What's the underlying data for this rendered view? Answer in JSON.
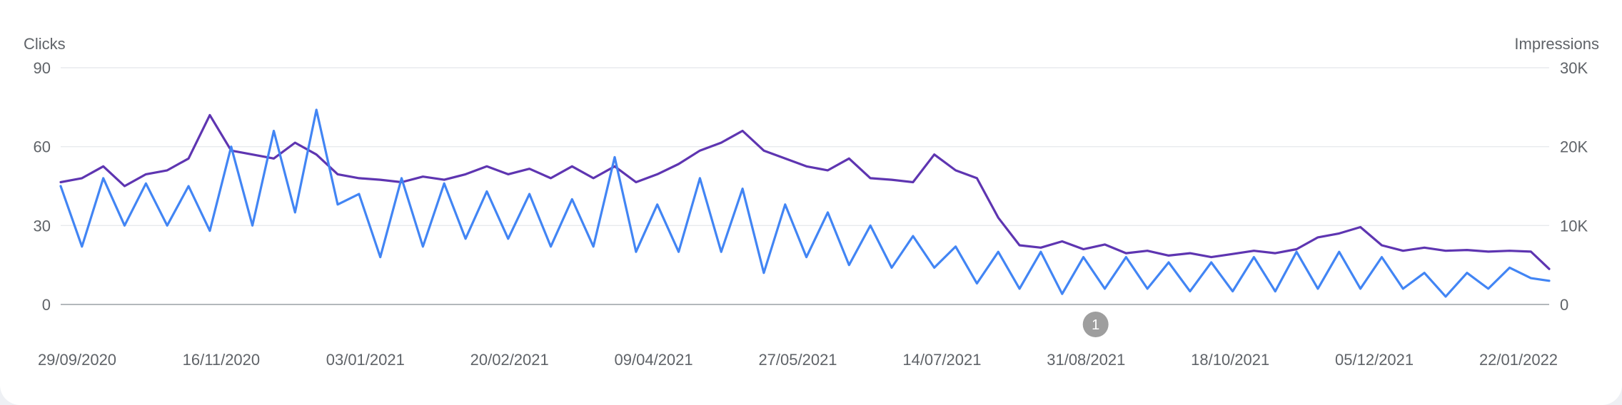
{
  "chart_data": {
    "type": "line",
    "left_axis": {
      "label": "Clicks",
      "ticks": [
        0,
        30,
        60,
        90
      ],
      "range": [
        0,
        90
      ]
    },
    "right_axis": {
      "label": "Impressions",
      "ticks": [
        "0",
        "10K",
        "20K",
        "30K"
      ],
      "range": [
        0,
        30000
      ]
    },
    "x_range": [
      "2020-09-29",
      "2022-01-31"
    ],
    "x_tick_labels": [
      "29/09/2020",
      "16/11/2020",
      "03/01/2021",
      "20/02/2021",
      "09/04/2021",
      "27/05/2021",
      "14/07/2021",
      "31/08/2021",
      "18/10/2021",
      "05/12/2021",
      "22/01/2022"
    ],
    "annotations": [
      {
        "label": "1",
        "date": "2021-09-04"
      }
    ],
    "grid": true,
    "legend": "none",
    "series": [
      {
        "axis": "left",
        "color": "#4285f4",
        "points": [
          [
            "2020-09-29",
            45
          ],
          [
            "2020-10-06",
            22
          ],
          [
            "2020-10-13",
            48
          ],
          [
            "2020-10-20",
            30
          ],
          [
            "2020-10-27",
            46
          ],
          [
            "2020-11-03",
            30
          ],
          [
            "2020-11-10",
            45
          ],
          [
            "2020-11-17",
            28
          ],
          [
            "2020-11-24",
            60
          ],
          [
            "2020-12-01",
            30
          ],
          [
            "2020-12-08",
            66
          ],
          [
            "2020-12-15",
            35
          ],
          [
            "2020-12-22",
            74
          ],
          [
            "2020-12-29",
            38
          ],
          [
            "2021-01-05",
            42
          ],
          [
            "2021-01-12",
            18
          ],
          [
            "2021-01-19",
            48
          ],
          [
            "2021-01-26",
            22
          ],
          [
            "2021-02-02",
            46
          ],
          [
            "2021-02-09",
            25
          ],
          [
            "2021-02-16",
            43
          ],
          [
            "2021-02-23",
            25
          ],
          [
            "2021-03-02",
            42
          ],
          [
            "2021-03-09",
            22
          ],
          [
            "2021-03-16",
            40
          ],
          [
            "2021-03-23",
            22
          ],
          [
            "2021-03-30",
            56
          ],
          [
            "2021-04-06",
            20
          ],
          [
            "2021-04-13",
            38
          ],
          [
            "2021-04-20",
            20
          ],
          [
            "2021-04-27",
            48
          ],
          [
            "2021-05-04",
            20
          ],
          [
            "2021-05-11",
            44
          ],
          [
            "2021-05-18",
            12
          ],
          [
            "2021-05-25",
            38
          ],
          [
            "2021-06-01",
            18
          ],
          [
            "2021-06-08",
            35
          ],
          [
            "2021-06-15",
            15
          ],
          [
            "2021-06-22",
            30
          ],
          [
            "2021-06-29",
            14
          ],
          [
            "2021-07-06",
            26
          ],
          [
            "2021-07-13",
            14
          ],
          [
            "2021-07-20",
            22
          ],
          [
            "2021-07-27",
            8
          ],
          [
            "2021-08-03",
            20
          ],
          [
            "2021-08-10",
            6
          ],
          [
            "2021-08-17",
            20
          ],
          [
            "2021-08-24",
            4
          ],
          [
            "2021-08-31",
            18
          ],
          [
            "2021-09-07",
            6
          ],
          [
            "2021-09-14",
            18
          ],
          [
            "2021-09-21",
            6
          ],
          [
            "2021-09-28",
            16
          ],
          [
            "2021-10-05",
            5
          ],
          [
            "2021-10-12",
            16
          ],
          [
            "2021-10-19",
            5
          ],
          [
            "2021-10-26",
            18
          ],
          [
            "2021-11-02",
            5
          ],
          [
            "2021-11-09",
            20
          ],
          [
            "2021-11-16",
            6
          ],
          [
            "2021-11-23",
            20
          ],
          [
            "2021-11-30",
            6
          ],
          [
            "2021-12-07",
            18
          ],
          [
            "2021-12-14",
            6
          ],
          [
            "2021-12-21",
            12
          ],
          [
            "2021-12-28",
            3
          ],
          [
            "2022-01-04",
            12
          ],
          [
            "2022-01-11",
            6
          ],
          [
            "2022-01-18",
            14
          ],
          [
            "2022-01-25",
            10
          ],
          [
            "2022-01-31",
            9
          ]
        ]
      },
      {
        "axis": "right",
        "color": "#5e35b1",
        "points": [
          [
            "2020-09-29",
            15500
          ],
          [
            "2020-10-06",
            16000
          ],
          [
            "2020-10-13",
            17500
          ],
          [
            "2020-10-20",
            15000
          ],
          [
            "2020-10-27",
            16500
          ],
          [
            "2020-11-03",
            17000
          ],
          [
            "2020-11-10",
            18500
          ],
          [
            "2020-11-17",
            24000
          ],
          [
            "2020-11-24",
            19500
          ],
          [
            "2020-12-01",
            19000
          ],
          [
            "2020-12-08",
            18500
          ],
          [
            "2020-12-15",
            20500
          ],
          [
            "2020-12-22",
            19000
          ],
          [
            "2020-12-29",
            16500
          ],
          [
            "2021-01-05",
            16000
          ],
          [
            "2021-01-12",
            15800
          ],
          [
            "2021-01-19",
            15500
          ],
          [
            "2021-01-26",
            16200
          ],
          [
            "2021-02-02",
            15800
          ],
          [
            "2021-02-09",
            16500
          ],
          [
            "2021-02-16",
            17500
          ],
          [
            "2021-02-23",
            16500
          ],
          [
            "2021-03-02",
            17200
          ],
          [
            "2021-03-09",
            16000
          ],
          [
            "2021-03-16",
            17500
          ],
          [
            "2021-03-23",
            16000
          ],
          [
            "2021-03-30",
            17500
          ],
          [
            "2021-04-06",
            15500
          ],
          [
            "2021-04-13",
            16500
          ],
          [
            "2021-04-20",
            17800
          ],
          [
            "2021-04-27",
            19500
          ],
          [
            "2021-05-04",
            20500
          ],
          [
            "2021-05-11",
            22000
          ],
          [
            "2021-05-18",
            19500
          ],
          [
            "2021-05-25",
            18500
          ],
          [
            "2021-06-01",
            17500
          ],
          [
            "2021-06-08",
            17000
          ],
          [
            "2021-06-15",
            18500
          ],
          [
            "2021-06-22",
            16000
          ],
          [
            "2021-06-29",
            15800
          ],
          [
            "2021-07-06",
            15500
          ],
          [
            "2021-07-13",
            19000
          ],
          [
            "2021-07-20",
            17000
          ],
          [
            "2021-07-27",
            16000
          ],
          [
            "2021-08-03",
            11000
          ],
          [
            "2021-08-10",
            7500
          ],
          [
            "2021-08-17",
            7200
          ],
          [
            "2021-08-24",
            8000
          ],
          [
            "2021-08-31",
            7000
          ],
          [
            "2021-09-07",
            7600
          ],
          [
            "2021-09-14",
            6500
          ],
          [
            "2021-09-21",
            6800
          ],
          [
            "2021-09-28",
            6200
          ],
          [
            "2021-10-05",
            6500
          ],
          [
            "2021-10-12",
            6000
          ],
          [
            "2021-10-19",
            6400
          ],
          [
            "2021-10-26",
            6800
          ],
          [
            "2021-11-02",
            6500
          ],
          [
            "2021-11-09",
            7000
          ],
          [
            "2021-11-16",
            8500
          ],
          [
            "2021-11-23",
            9000
          ],
          [
            "2021-11-30",
            9800
          ],
          [
            "2021-12-07",
            7500
          ],
          [
            "2021-12-14",
            6800
          ],
          [
            "2021-12-21",
            7200
          ],
          [
            "2021-12-28",
            6800
          ],
          [
            "2022-01-04",
            6900
          ],
          [
            "2022-01-11",
            6700
          ],
          [
            "2022-01-18",
            6800
          ],
          [
            "2022-01-25",
            6700
          ],
          [
            "2022-01-31",
            4500
          ]
        ]
      }
    ]
  }
}
